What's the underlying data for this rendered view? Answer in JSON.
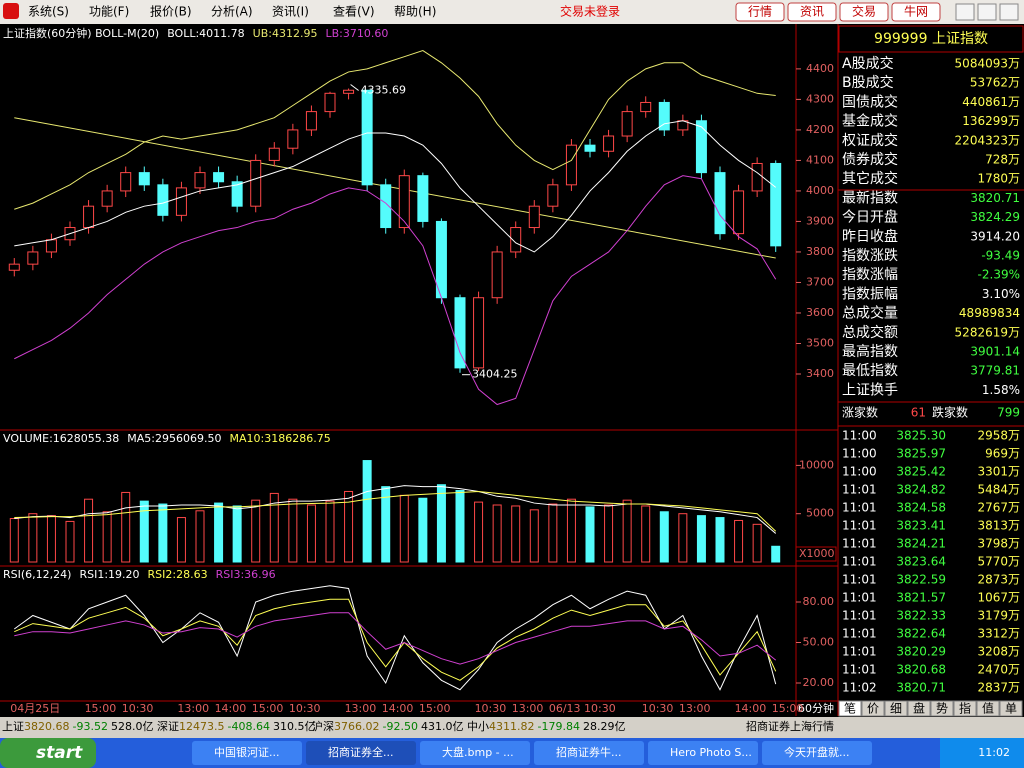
{
  "menu": {
    "items": [
      "系统(S)",
      "功能(F)",
      "报价(B)",
      "分析(A)",
      "资讯(I)",
      "查看(V)",
      "帮助(H)"
    ],
    "status": "交易未登录",
    "buttons": [
      "行情",
      "资讯",
      "交易",
      "牛网"
    ]
  },
  "chart_data": [
    {
      "type": "candlestick",
      "title": "上证指数(60分钟) BOLL-M(20)",
      "open": [
        3740,
        3760,
        3800,
        3840,
        3880,
        3950,
        4000,
        4060,
        4020,
        3920,
        4010,
        4060,
        4030,
        3950,
        4100,
        4140,
        4200,
        4260,
        4320,
        4330,
        4020,
        3880,
        4050,
        3900,
        3650,
        3420,
        3650,
        3800,
        3880,
        3950,
        4020,
        4150,
        4130,
        4180,
        4260,
        4290,
        4200,
        4230,
        4060,
        3860,
        4000,
        4090
      ],
      "high": [
        3780,
        3820,
        3860,
        3900,
        3970,
        4020,
        4080,
        4080,
        4040,
        4030,
        4080,
        4080,
        4050,
        4120,
        4160,
        4220,
        4280,
        4325,
        4335.69,
        4330,
        4040,
        4070,
        4060,
        3910,
        3660,
        3670,
        3820,
        3900,
        3970,
        4040,
        4170,
        4170,
        4200,
        4280,
        4310,
        4300,
        4250,
        4250,
        4080,
        4020,
        4110,
        4100
      ],
      "low": [
        3720,
        3740,
        3780,
        3820,
        3860,
        3930,
        3980,
        4000,
        3900,
        3900,
        3990,
        4010,
        3930,
        3930,
        4080,
        4120,
        4180,
        4240,
        4300,
        4000,
        3860,
        3860,
        3880,
        3630,
        3404.25,
        3410,
        3630,
        3780,
        3860,
        3930,
        4000,
        4110,
        4110,
        4160,
        4240,
        4180,
        4180,
        4040,
        3840,
        3840,
        3980,
        3800
      ],
      "close": [
        3760,
        3800,
        3840,
        3880,
        3950,
        4000,
        4060,
        4020,
        3920,
        4010,
        4060,
        4030,
        3950,
        4100,
        4140,
        4200,
        4260,
        4320,
        4330,
        4020,
        3880,
        4050,
        3900,
        3650,
        3420,
        3650,
        3800,
        3880,
        3950,
        4020,
        4150,
        4130,
        4180,
        4260,
        4290,
        4200,
        4230,
        4060,
        3860,
        4000,
        4090,
        3820
      ],
      "up_color": "#ff4848",
      "down_color": "#54fcfc",
      "series": [
        {
          "name": "BOLL:4011.78",
          "color": "#ffffff",
          "values": [
            3820,
            3830,
            3840,
            3860,
            3880,
            3900,
            3930,
            3950,
            3960,
            3980,
            4000,
            4010,
            4020,
            4040,
            4060,
            4080,
            4110,
            4140,
            4170,
            4190,
            4190,
            4180,
            4150,
            4090,
            4010,
            3950,
            3890,
            3830,
            3800,
            3850,
            3920,
            4000,
            4060,
            4130,
            4180,
            4220,
            4230,
            4210,
            4150,
            4100,
            4060,
            4011.78
          ]
        },
        {
          "name": "UB:4312.95",
          "color": "#e8e870",
          "values": [
            3940,
            3960,
            3990,
            4020,
            4060,
            4090,
            4120,
            4160,
            4180,
            4170,
            4180,
            4190,
            4200,
            4220,
            4240,
            4280,
            4320,
            4360,
            4390,
            4400,
            4420,
            4440,
            4460,
            4420,
            4370,
            4310,
            4220,
            4150,
            4100,
            4070,
            4100,
            4200,
            4300,
            4360,
            4400,
            4420,
            4420,
            4380,
            4360,
            4340,
            4320,
            4312.95
          ]
        },
        {
          "name": "LB:3710.60",
          "color": "#d040d0",
          "values": [
            3450,
            3480,
            3510,
            3550,
            3600,
            3660,
            3710,
            3760,
            3800,
            3830,
            3850,
            3870,
            3880,
            3900,
            3910,
            3940,
            3960,
            3990,
            4010,
            4000,
            3960,
            3900,
            3820,
            3650,
            3470,
            3350,
            3300,
            3320,
            3480,
            3640,
            3720,
            3760,
            3800,
            3870,
            3950,
            4020,
            4050,
            4040,
            3920,
            3850,
            3810,
            3710.6
          ]
        }
      ],
      "trendline": {
        "values": [
          4240,
          3780
        ],
        "color": "#e8e870"
      },
      "ylim": [
        3223,
        4534
      ],
      "yticks": [
        4400,
        4300,
        4200,
        4100,
        4000,
        3900,
        3800,
        3700,
        3600,
        3500,
        3400
      ]
    },
    {
      "type": "bar",
      "title": "VOLUME:1628055.38",
      "values": [
        4500,
        5000,
        4800,
        4200,
        6500,
        5200,
        7200,
        6300,
        6000,
        4600,
        5300,
        6100,
        5800,
        6400,
        7100,
        6500,
        5900,
        6300,
        7300,
        10500,
        7800,
        6900,
        6600,
        8000,
        7400,
        6200,
        5900,
        5800,
        5400,
        6000,
        6500,
        5700,
        5900,
        6400,
        5800,
        5200,
        5000,
        4800,
        4600,
        4300,
        3900,
        1628
      ],
      "series": [
        {
          "name": "MA5:2956069.50",
          "color": "#ffffff",
          "values": [
            4500,
            4700,
            4750,
            4600,
            5000,
            5100,
            5600,
            5800,
            5800,
            5900,
            5900,
            5800,
            5500,
            5700,
            6100,
            6300,
            6300,
            6400,
            6600,
            7300,
            7600,
            7900,
            7800,
            7800,
            7600,
            7300,
            6800,
            6600,
            6100,
            5900,
            5900,
            5900,
            5800,
            6000,
            6000,
            5800,
            5600,
            5400,
            5200,
            4900,
            4600,
            2956
          ]
        },
        {
          "name": "MA10:3186286.75",
          "color": "#ffff54",
          "values": [
            4600,
            4650,
            4700,
            4700,
            4800,
            4900,
            5100,
            5300,
            5400,
            5500,
            5600,
            5700,
            5700,
            5800,
            5900,
            6000,
            6050,
            6100,
            6200,
            6500,
            6700,
            6900,
            7000,
            7100,
            7200,
            7300,
            7100,
            6900,
            6700,
            6500,
            6300,
            6200,
            6100,
            6000,
            6000,
            5900,
            5800,
            5600,
            5400,
            5200,
            5000,
            3186
          ]
        }
      ],
      "ylim": [
        0,
        11800
      ],
      "yticks": [
        10000,
        5000
      ]
    },
    {
      "type": "line",
      "title": "RSI(6,12,24)",
      "categories": [
        "04月25日",
        null,
        null,
        null,
        "15:00",
        null,
        "10:30",
        null,
        null,
        "13:00",
        null,
        "14:00",
        null,
        "15:00",
        null,
        "10:30",
        null,
        null,
        "13:00",
        null,
        "14:00",
        null,
        "15:00",
        null,
        null,
        "10:30",
        null,
        "13:00",
        null,
        "06/13 10:30",
        null,
        null,
        null,
        null,
        "10:30",
        null,
        "13:00",
        null,
        null,
        "14:00",
        null,
        "15:00"
      ],
      "series": [
        {
          "name": "RSI1:19.20",
          "color": "#ffffff",
          "values": [
            60,
            70,
            65,
            60,
            75,
            80,
            85,
            70,
            50,
            60,
            72,
            65,
            40,
            80,
            85,
            88,
            90,
            92,
            90,
            40,
            20,
            55,
            35,
            22,
            15,
            30,
            50,
            60,
            68,
            78,
            85,
            75,
            82,
            88,
            85,
            60,
            70,
            40,
            15,
            45,
            70,
            19.2
          ]
        },
        {
          "name": "RSI2:28.63",
          "color": "#ffff54",
          "values": [
            58,
            64,
            62,
            60,
            68,
            72,
            76,
            68,
            55,
            60,
            66,
            62,
            48,
            70,
            75,
            78,
            80,
            82,
            82,
            50,
            32,
            50,
            38,
            28,
            22,
            32,
            46,
            54,
            60,
            68,
            74,
            70,
            74,
            78,
            78,
            62,
            66,
            48,
            26,
            42,
            58,
            28.63
          ]
        },
        {
          "name": "RSI3:36.96",
          "color": "#d040d0",
          "values": [
            55,
            58,
            58,
            57,
            60,
            63,
            66,
            63,
            57,
            58,
            61,
            60,
            54,
            62,
            66,
            68,
            70,
            72,
            72,
            58,
            45,
            50,
            44,
            38,
            34,
            38,
            44,
            50,
            54,
            58,
            62,
            62,
            64,
            66,
            66,
            60,
            62,
            52,
            40,
            42,
            48,
            36.96
          ]
        }
      ],
      "ylim": [
        7.4,
        103.7
      ],
      "yticks": [
        {
          "value": 80,
          "label": "80.00"
        },
        {
          "value": 50,
          "label": "50.00"
        },
        {
          "value": 20,
          "label": "20.00"
        }
      ]
    }
  ],
  "chart_labels": {
    "period": "60分钟",
    "volume_unit": "X1000"
  },
  "index_panel": {
    "title": "999999 上证指数",
    "rows": [
      {
        "label": "A股成交",
        "value": "5084093万",
        "color": "#ffff54"
      },
      {
        "label": "B股成交",
        "value": "53762万",
        "color": "#ffff54"
      },
      {
        "label": "国债成交",
        "value": "440861万",
        "color": "#ffff54"
      },
      {
        "label": "基金成交",
        "value": "136299万",
        "color": "#ffff54"
      },
      {
        "label": "权证成交",
        "value": "2204323万",
        "color": "#ffff54"
      },
      {
        "label": "债券成交",
        "value": "728万",
        "color": "#ffff54"
      },
      {
        "label": "其它成交",
        "value": "1780万",
        "color": "#ffff54"
      },
      {
        "label": "最新指数",
        "value": "3820.71",
        "color": "#40ff40"
      },
      {
        "label": "今日开盘",
        "value": "3824.29",
        "color": "#40ff40"
      },
      {
        "label": "昨日收盘",
        "value": "3914.20",
        "color": "#ffffff"
      },
      {
        "label": "指数涨跌",
        "value": "-93.49",
        "color": "#40ff40"
      },
      {
        "label": "指数涨幅",
        "value": "-2.39%",
        "color": "#40ff40"
      },
      {
        "label": "指数振幅",
        "value": "3.10%",
        "color": "#ffffff"
      },
      {
        "label": "总成交量",
        "value": "48989834",
        "color": "#ffff54"
      },
      {
        "label": "总成交额",
        "value": "5282619万",
        "color": "#ffff54"
      },
      {
        "label": "最高指数",
        "value": "3901.14",
        "color": "#40ff40"
      },
      {
        "label": "最低指数",
        "value": "3779.81",
        "color": "#40ff40"
      },
      {
        "label": "上证换手",
        "value": "1.58%",
        "color": "#ffffff"
      }
    ],
    "breadth": {
      "up_label": "涨家数",
      "up": 61,
      "down_label": "跌家数",
      "down": 799
    }
  },
  "trades": [
    {
      "time": "11:00",
      "price": "3825.30",
      "volume": "2958万"
    },
    {
      "time": "11:00",
      "price": "3825.97",
      "volume": "969万"
    },
    {
      "time": "11:00",
      "price": "3825.42",
      "volume": "3301万"
    },
    {
      "time": "11:01",
      "price": "3824.82",
      "volume": "5484万"
    },
    {
      "time": "11:01",
      "price": "3824.58",
      "volume": "2767万"
    },
    {
      "time": "11:01",
      "price": "3823.41",
      "volume": "3813万"
    },
    {
      "time": "11:01",
      "price": "3824.21",
      "volume": "3798万"
    },
    {
      "time": "11:01",
      "price": "3823.64",
      "volume": "5770万"
    },
    {
      "time": "11:01",
      "price": "3822.59",
      "volume": "2873万"
    },
    {
      "time": "11:01",
      "price": "3821.57",
      "volume": "1067万"
    },
    {
      "time": "11:01",
      "price": "3822.33",
      "volume": "3179万"
    },
    {
      "time": "11:01",
      "price": "3822.64",
      "volume": "3312万"
    },
    {
      "time": "11:01",
      "price": "3820.29",
      "volume": "3208万"
    },
    {
      "time": "11:01",
      "price": "3820.68",
      "volume": "2470万"
    },
    {
      "time": "11:02",
      "price": "3820.71",
      "volume": "2837万"
    }
  ],
  "tabs": [
    "笔",
    "价",
    "细",
    "盘",
    "势",
    "指",
    "值",
    "单"
  ],
  "status_bar": {
    "quotes": [
      {
        "name": "上证",
        "price": "3820.68",
        "change": "-93.52",
        "amount": "528.0亿"
      },
      {
        "name": "深证",
        "price": "12473.5",
        "change": "-408.64",
        "amount": "310.5亿"
      },
      {
        "name": "沪深",
        "price": "3766.02",
        "change": "-92.50",
        "amount": "431.0亿"
      },
      {
        "name": "中小",
        "price": "4311.82",
        "change": "-179.84",
        "amount": "28.29亿"
      }
    ],
    "source": "招商证券上海行情"
  },
  "taskbar": {
    "start": "start",
    "tasks": [
      "中国银河证...",
      "招商证券全...",
      "大盘.bmp - ...",
      "招商证券牛...",
      "Hero Photo S...",
      "今天开盘就..."
    ],
    "clock": "11:02"
  }
}
